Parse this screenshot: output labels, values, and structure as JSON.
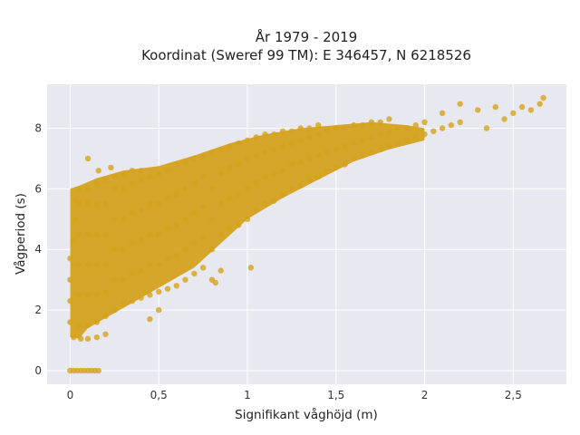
{
  "chart_data": {
    "type": "scatter",
    "title_lines": [
      "År 1979 - 2019",
      "Koordinat (Sweref 99 TM): E 346457, N 6218526"
    ],
    "xlabel": "Signifikant våghöjd (m)",
    "ylabel": "Vågperiod (s)",
    "xlim": [
      -0.13,
      2.8
    ],
    "ylim": [
      -0.45,
      9.45
    ],
    "x_ticks": [
      0,
      0.5,
      1,
      1.5,
      2,
      2.5
    ],
    "x_tick_labels": [
      "0",
      "0,5",
      "1",
      "1,5",
      "2",
      "2,5"
    ],
    "y_ticks": [
      0,
      2,
      4,
      6,
      8
    ],
    "y_tick_labels": [
      "0",
      "2",
      "4",
      "6",
      "8"
    ],
    "grid": true,
    "legend": "none",
    "point_color": "#d4a21d",
    "background_color": "#e8e8f1",
    "series": [
      {
        "points": [
          [
            0.0,
            0.0
          ],
          [
            0.02,
            0.0
          ],
          [
            0.04,
            0.0
          ],
          [
            0.06,
            0.0
          ],
          [
            0.08,
            0.0
          ],
          [
            0.1,
            0.0
          ],
          [
            0.12,
            0.0
          ],
          [
            0.14,
            0.0
          ],
          [
            0.16,
            0.0
          ],
          [
            0.0,
            1.6
          ],
          [
            0.0,
            2.3
          ],
          [
            0.0,
            3.0
          ],
          [
            0.0,
            3.7
          ],
          [
            0.02,
            4.3
          ],
          [
            0.03,
            5.0
          ],
          [
            0.03,
            5.6
          ],
          [
            0.05,
            6.0
          ],
          [
            0.02,
            1.1
          ],
          [
            0.06,
            1.05
          ],
          [
            0.1,
            1.05
          ],
          [
            0.15,
            1.1
          ],
          [
            0.2,
            1.2
          ],
          [
            0.05,
            1.5
          ],
          [
            0.05,
            2.5
          ],
          [
            0.05,
            3.5
          ],
          [
            0.05,
            4.5
          ],
          [
            0.05,
            5.5
          ],
          [
            0.1,
            1.5
          ],
          [
            0.1,
            2.5
          ],
          [
            0.1,
            3.5
          ],
          [
            0.1,
            4.5
          ],
          [
            0.1,
            5.5
          ],
          [
            0.1,
            6.0
          ],
          [
            0.15,
            1.6
          ],
          [
            0.15,
            2.5
          ],
          [
            0.15,
            3.5
          ],
          [
            0.15,
            4.5
          ],
          [
            0.15,
            5.5
          ],
          [
            0.15,
            6.2
          ],
          [
            0.2,
            1.8
          ],
          [
            0.2,
            2.6
          ],
          [
            0.2,
            3.5
          ],
          [
            0.2,
            4.5
          ],
          [
            0.2,
            5.5
          ],
          [
            0.2,
            6.3
          ],
          [
            0.25,
            2.0
          ],
          [
            0.25,
            3.0
          ],
          [
            0.25,
            4.0
          ],
          [
            0.25,
            5.0
          ],
          [
            0.25,
            6.0
          ],
          [
            0.25,
            6.4
          ],
          [
            0.3,
            2.2
          ],
          [
            0.3,
            3.0
          ],
          [
            0.3,
            4.0
          ],
          [
            0.3,
            5.0
          ],
          [
            0.3,
            6.0
          ],
          [
            0.3,
            6.5
          ],
          [
            0.35,
            2.3
          ],
          [
            0.35,
            3.2
          ],
          [
            0.35,
            4.2
          ],
          [
            0.35,
            5.2
          ],
          [
            0.35,
            6.2
          ],
          [
            0.35,
            6.6
          ],
          [
            0.4,
            2.4
          ],
          [
            0.4,
            3.3
          ],
          [
            0.4,
            4.3
          ],
          [
            0.4,
            5.3
          ],
          [
            0.4,
            6.3
          ],
          [
            0.4,
            6.6
          ],
          [
            0.45,
            2.5
          ],
          [
            0.45,
            3.5
          ],
          [
            0.45,
            4.5
          ],
          [
            0.45,
            5.5
          ],
          [
            0.45,
            6.4
          ],
          [
            0.5,
            2.6
          ],
          [
            0.5,
            3.5
          ],
          [
            0.5,
            4.5
          ],
          [
            0.5,
            5.5
          ],
          [
            0.5,
            6.5
          ],
          [
            0.55,
            2.7
          ],
          [
            0.55,
            3.7
          ],
          [
            0.55,
            4.7
          ],
          [
            0.55,
            5.7
          ],
          [
            0.55,
            6.6
          ],
          [
            0.6,
            2.8
          ],
          [
            0.6,
            3.8
          ],
          [
            0.6,
            4.8
          ],
          [
            0.6,
            5.8
          ],
          [
            0.6,
            6.8
          ],
          [
            0.65,
            3.0
          ],
          [
            0.65,
            4.0
          ],
          [
            0.65,
            5.0
          ],
          [
            0.65,
            6.0
          ],
          [
            0.65,
            6.9
          ],
          [
            0.7,
            3.2
          ],
          [
            0.7,
            4.2
          ],
          [
            0.7,
            5.2
          ],
          [
            0.7,
            6.2
          ],
          [
            0.7,
            7.0
          ],
          [
            0.75,
            3.4
          ],
          [
            0.75,
            4.4
          ],
          [
            0.75,
            5.4
          ],
          [
            0.75,
            6.4
          ],
          [
            0.75,
            7.1
          ],
          [
            0.8,
            3.0
          ],
          [
            0.8,
            4.0
          ],
          [
            0.8,
            5.0
          ],
          [
            0.8,
            6.0
          ],
          [
            0.8,
            7.2
          ],
          [
            0.85,
            4.5
          ],
          [
            0.85,
            5.5
          ],
          [
            0.85,
            6.5
          ],
          [
            0.85,
            7.3
          ],
          [
            0.9,
            4.7
          ],
          [
            0.9,
            5.7
          ],
          [
            0.9,
            6.7
          ],
          [
            0.9,
            7.4
          ],
          [
            0.95,
            4.8
          ],
          [
            0.95,
            5.8
          ],
          [
            0.95,
            6.8
          ],
          [
            0.95,
            7.5
          ],
          [
            1.0,
            5.0
          ],
          [
            1.0,
            6.0
          ],
          [
            1.0,
            7.0
          ],
          [
            1.0,
            7.6
          ],
          [
            1.05,
            5.3
          ],
          [
            1.05,
            6.2
          ],
          [
            1.05,
            7.1
          ],
          [
            1.05,
            7.7
          ],
          [
            1.1,
            5.5
          ],
          [
            1.1,
            6.4
          ],
          [
            1.1,
            7.2
          ],
          [
            1.1,
            7.8
          ],
          [
            1.15,
            5.6
          ],
          [
            1.15,
            6.5
          ],
          [
            1.15,
            7.3
          ],
          [
            1.15,
            7.8
          ],
          [
            1.2,
            5.8
          ],
          [
            1.2,
            6.6
          ],
          [
            1.2,
            7.4
          ],
          [
            1.2,
            7.9
          ],
          [
            1.25,
            6.0
          ],
          [
            1.25,
            6.8
          ],
          [
            1.25,
            7.5
          ],
          [
            1.25,
            7.9
          ],
          [
            1.3,
            6.1
          ],
          [
            1.3,
            6.9
          ],
          [
            1.3,
            7.6
          ],
          [
            1.3,
            8.0
          ],
          [
            1.35,
            6.3
          ],
          [
            1.35,
            7.0
          ],
          [
            1.35,
            7.7
          ],
          [
            1.35,
            8.0
          ],
          [
            1.4,
            6.4
          ],
          [
            1.4,
            7.1
          ],
          [
            1.4,
            7.8
          ],
          [
            1.4,
            8.1
          ],
          [
            1.45,
            6.6
          ],
          [
            1.45,
            7.2
          ],
          [
            1.45,
            7.9
          ],
          [
            1.5,
            6.7
          ],
          [
            1.5,
            7.3
          ],
          [
            1.5,
            8.0
          ],
          [
            1.55,
            6.8
          ],
          [
            1.55,
            7.4
          ],
          [
            1.55,
            8.0
          ],
          [
            1.6,
            7.0
          ],
          [
            1.6,
            7.5
          ],
          [
            1.6,
            8.1
          ],
          [
            1.65,
            7.1
          ],
          [
            1.65,
            7.6
          ],
          [
            1.65,
            8.1
          ],
          [
            1.7,
            7.2
          ],
          [
            1.7,
            7.7
          ],
          [
            1.7,
            8.2
          ],
          [
            1.75,
            7.3
          ],
          [
            1.75,
            7.8
          ],
          [
            1.75,
            8.2
          ],
          [
            1.8,
            7.4
          ],
          [
            1.8,
            7.9
          ],
          [
            1.8,
            8.3
          ],
          [
            1.85,
            7.5
          ],
          [
            1.85,
            8.0
          ],
          [
            1.9,
            7.6
          ],
          [
            1.9,
            8.0
          ],
          [
            1.95,
            7.7
          ],
          [
            1.95,
            8.1
          ],
          [
            2.0,
            7.8
          ],
          [
            2.0,
            8.2
          ],
          [
            2.05,
            7.9
          ],
          [
            2.1,
            8.0
          ],
          [
            2.1,
            8.5
          ],
          [
            2.15,
            8.1
          ],
          [
            2.2,
            8.2
          ],
          [
            2.2,
            8.8
          ],
          [
            2.3,
            8.6
          ],
          [
            2.35,
            8.0
          ],
          [
            2.4,
            8.7
          ],
          [
            2.45,
            8.3
          ],
          [
            2.5,
            8.5
          ],
          [
            2.55,
            8.7
          ],
          [
            2.6,
            8.6
          ],
          [
            2.65,
            8.8
          ],
          [
            2.67,
            9.0
          ],
          [
            0.1,
            7.0
          ],
          [
            0.16,
            6.6
          ],
          [
            0.23,
            6.7
          ],
          [
            0.82,
            2.9
          ],
          [
            0.85,
            3.3
          ],
          [
            1.02,
            3.4
          ],
          [
            0.5,
            2.0
          ],
          [
            0.45,
            1.7
          ]
        ]
      }
    ]
  }
}
